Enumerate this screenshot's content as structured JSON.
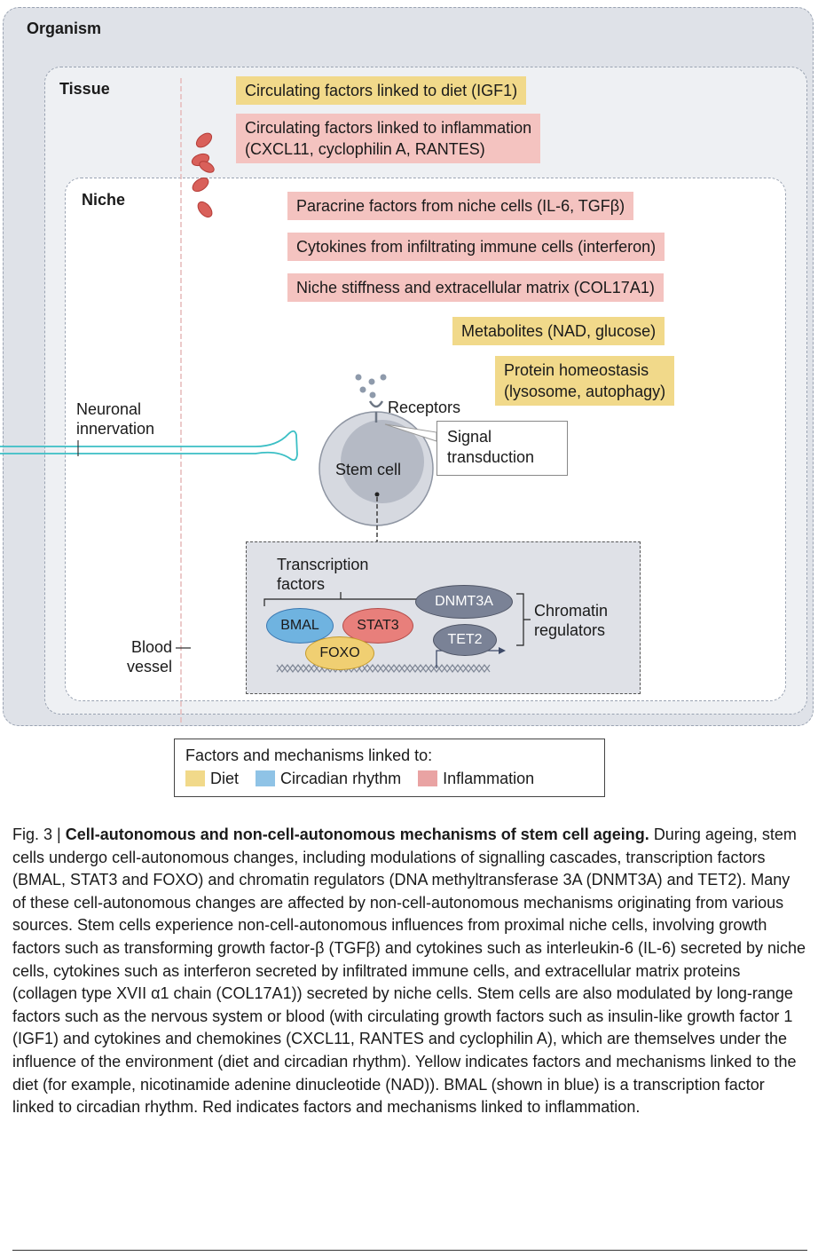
{
  "levels": {
    "organism": "Organism",
    "tissue": "Tissue",
    "niche": "Niche"
  },
  "factors": {
    "igf1": "Circulating factors linked to diet (IGF1)",
    "inflam_line1": "Circulating factors linked to inflammation",
    "inflam_line2": "(CXCL11, cyclophilin A, RANTES)",
    "paracrine": "Paracrine factors from niche cells (IL-6, TGFβ)",
    "cytokines": "Cytokines from infiltrating immune cells (interferon)",
    "stiffness": "Niche stiffness and extracellular matrix (COL17A1)",
    "metabolites": "Metabolites (NAD, glucose)",
    "protein_line1": "Protein homeostasis",
    "protein_line2": "(lysosome, autophagy)"
  },
  "labels": {
    "neuronal_line1": "Neuronal",
    "neuronal_line2": "innervation",
    "receptors": "Receptors",
    "signal_line1": "Signal",
    "signal_line2": "transduction",
    "stem_cell": "Stem cell",
    "tf_line1": "Transcription",
    "tf_line2": "factors",
    "bmal": "BMAL",
    "stat3": "STAT3",
    "foxo": "FOXO",
    "dnmt3a": "DNMT3A",
    "tet2": "TET2",
    "chromatin_line1": "Chromatin",
    "chromatin_line2": "regulators",
    "blood_line1": "Blood",
    "blood_line2": "vessel"
  },
  "legend": {
    "title": "Factors and mechanisms linked to:",
    "items": [
      {
        "label": "Diet",
        "color": "#f1d98a"
      },
      {
        "label": "Circadian rhythm",
        "color": "#8fc3e6"
      },
      {
        "label": "Inflammation",
        "color": "#e9a3a3"
      }
    ]
  },
  "caption": {
    "fig_label": "Fig. 3 | ",
    "title": "Cell-autonomous and non-cell-autonomous mechanisms of stem cell ageing.",
    "body": "During ageing, stem cells undergo cell-autonomous changes, including modulations of signalling cascades, transcription factors (BMAL, STAT3 and FOXO) and chromatin regulators (DNA methyltransferase 3A (DNMT3A) and TET2). Many of these cell-autonomous changes are affected by non-cell-autonomous mechanisms originating from various sources. Stem cells experience non-cell-autonomous influences from proximal niche cells, involving growth factors such as transforming growth factor-β (TGFβ) and cytokines such as interleukin-6 (IL-6) secreted by niche cells, cytokines such as interferon secreted by infiltrated immune cells, and extracellular matrix proteins (collagen type XVII α1 chain (COL17A1)) secreted by niche cells. Stem cells are also modulated by long-range factors such as the nervous system or blood (with circulating growth factors such as insulin-like growth factor 1 (IGF1) and cytokines and chemokines (CXCL11, RANTES and cyclophilin A), which are themselves under the influence of the environment (diet and circadian rhythm). Yellow indicates factors and mechanisms linked to the diet (for example, nicotinamide adenine dinucleotide (NAD)). BMAL (shown in blue) is a transcription factor linked to circadian rhythm. Red indicates factors and mechanisms linked to inflammation."
  }
}
